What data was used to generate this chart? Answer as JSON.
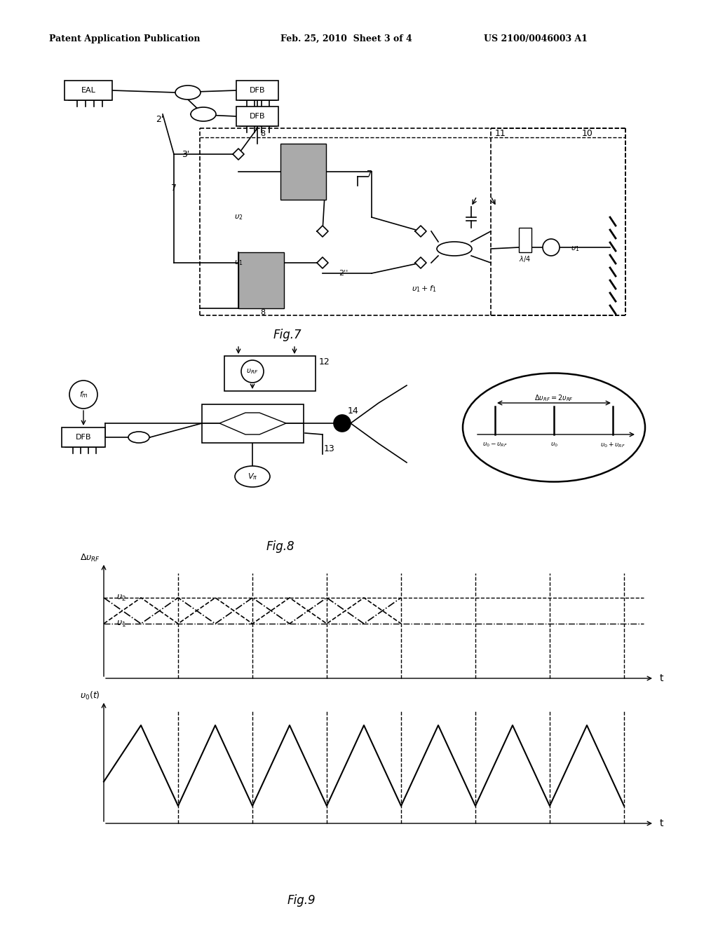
{
  "header_left": "Patent Application Publication",
  "header_center": "Feb. 25, 2010  Sheet 3 of 4",
  "header_right": "US 2100/0046003 A1",
  "fig7_label": "Fig.7",
  "fig8_label": "Fig.8",
  "fig9_label": "Fig.9",
  "background_color": "#ffffff",
  "line_color": "#000000",
  "gray_fill": "#999999",
  "header_actual_right": "US 2100/0046003 A1"
}
